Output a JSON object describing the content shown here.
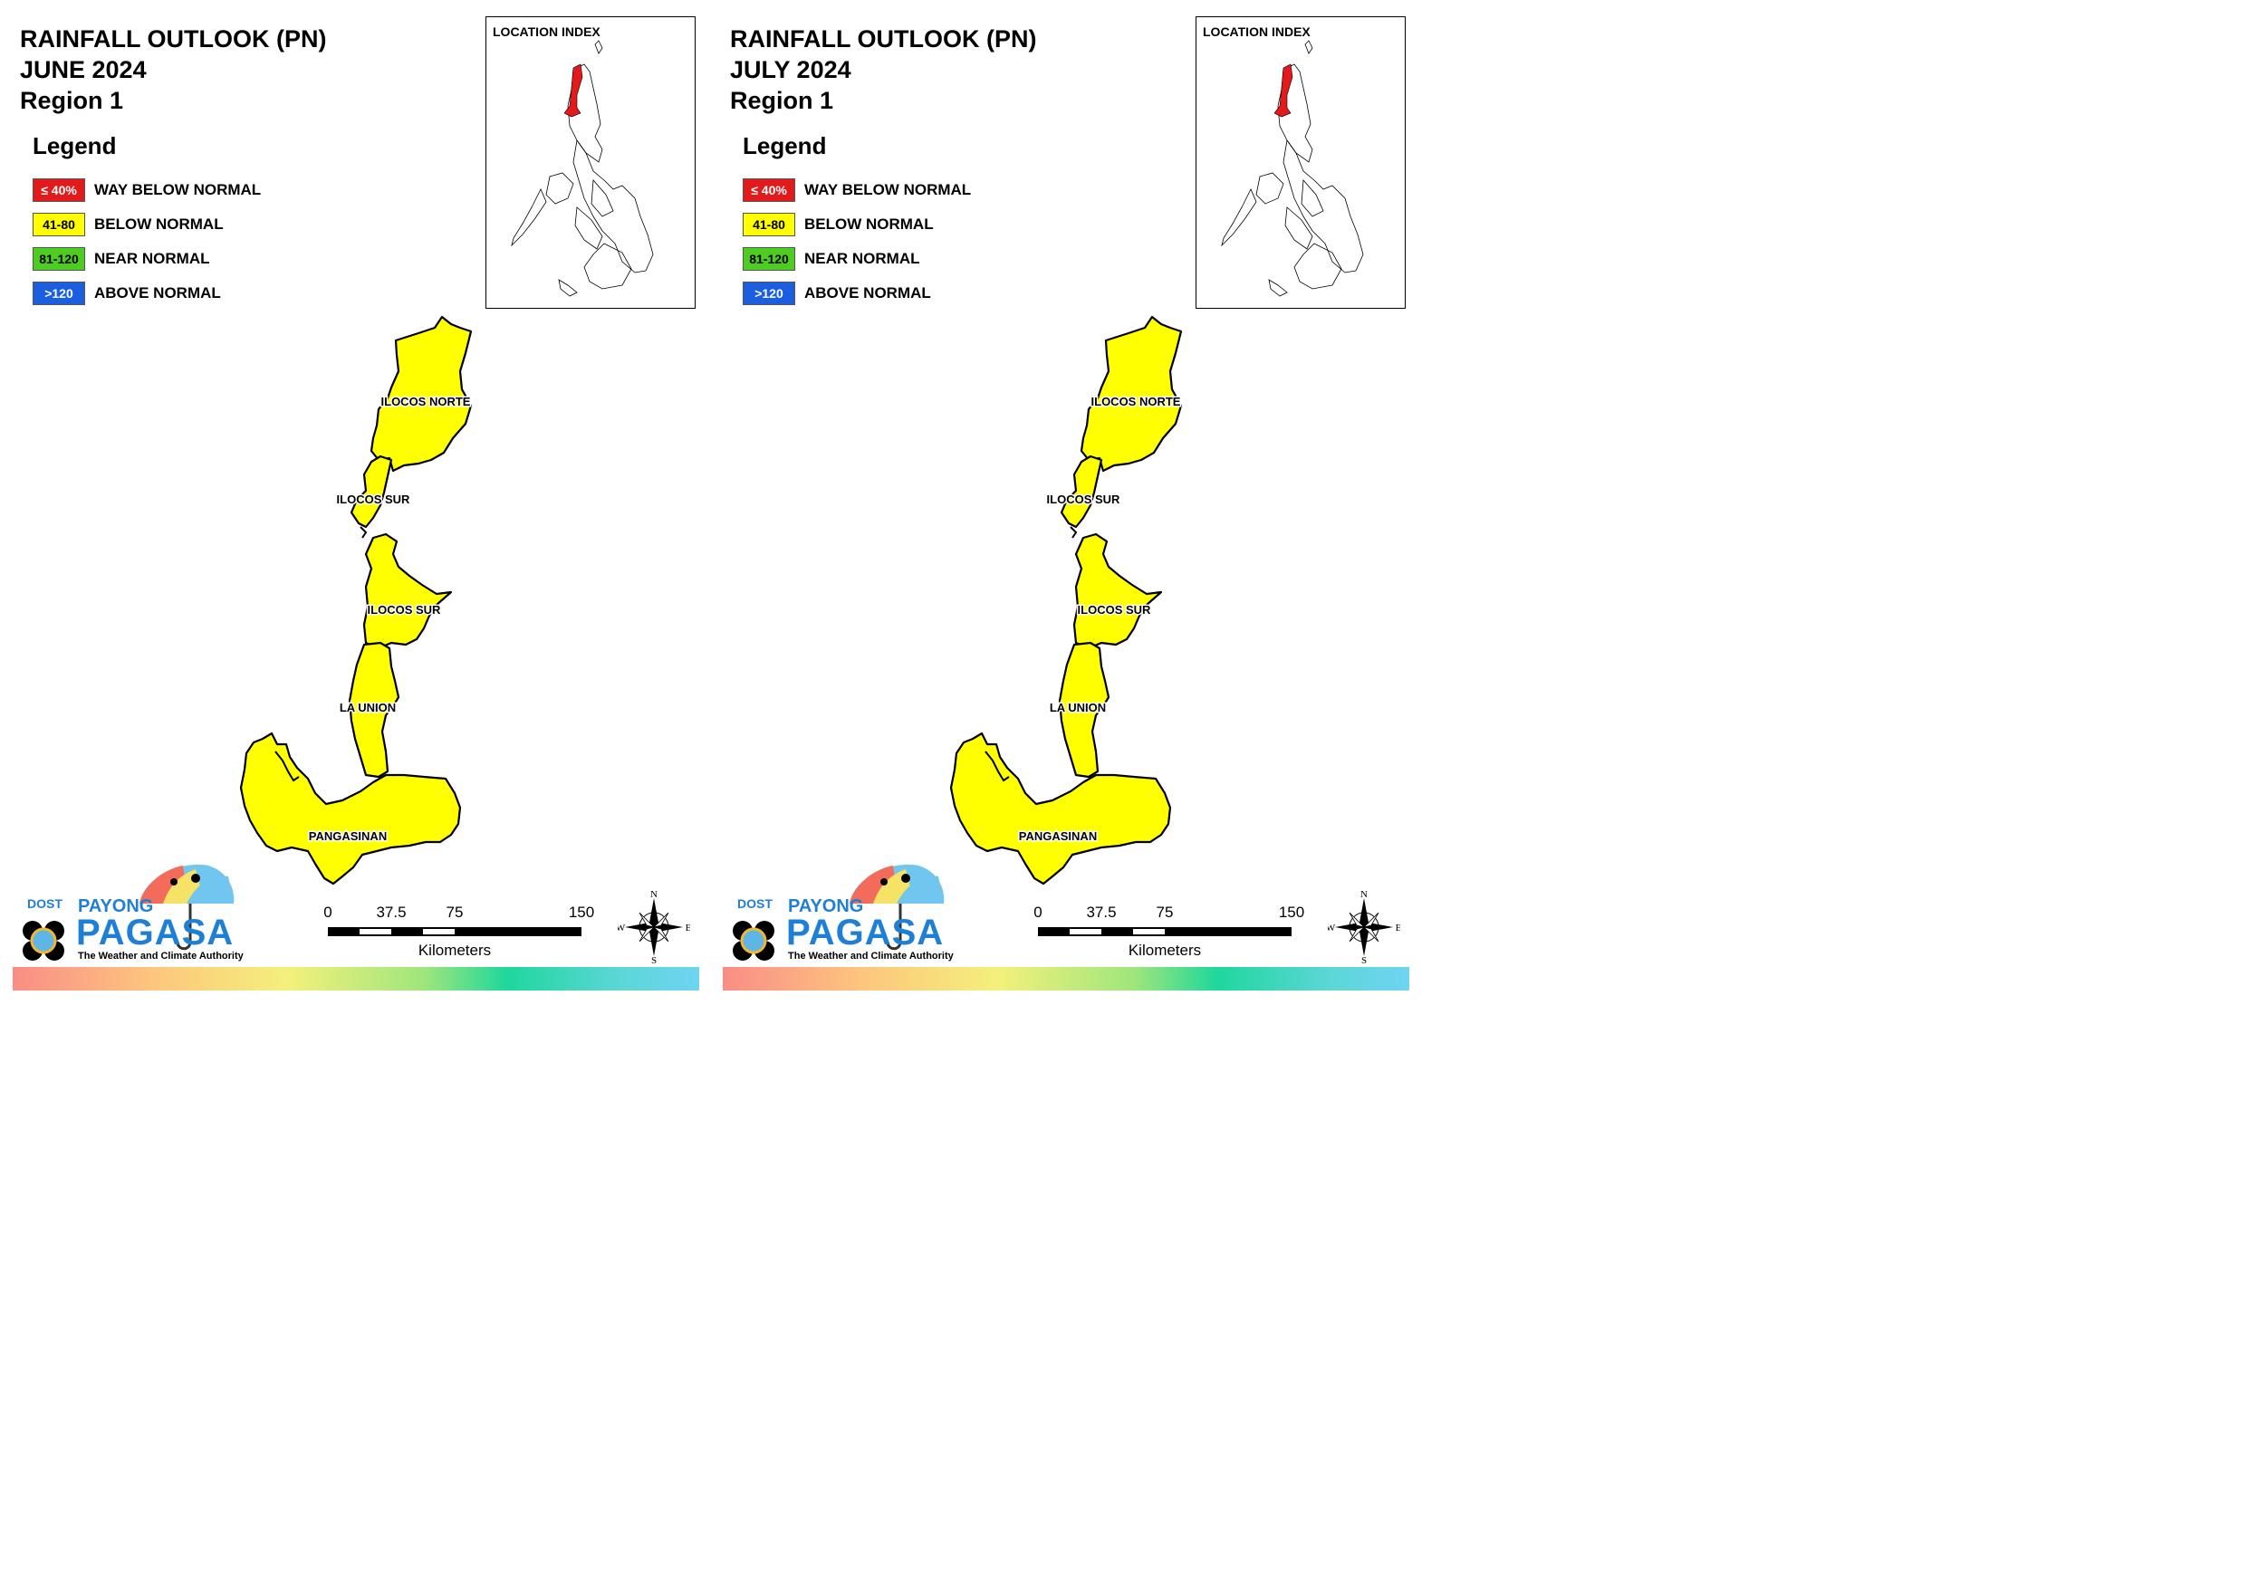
{
  "panels": [
    {
      "title_line1": "RAINFALL OUTLOOK (PN)",
      "title_line2": "JUNE 2024",
      "title_line3": "Region 1"
    },
    {
      "title_line1": "RAINFALL OUTLOOK (PN)",
      "title_line2": "JULY 2024",
      "title_line3": "Region 1"
    }
  ],
  "legend": {
    "title": "Legend",
    "items": [
      {
        "swatch": "≤ 40%",
        "label": "WAY BELOW NORMAL",
        "color": "#e31a1c",
        "text_color": "#ffffff"
      },
      {
        "swatch": "41-80",
        "label": "BELOW NORMAL",
        "color": "#ffff00",
        "text_color": "#000000"
      },
      {
        "swatch": "81-120",
        "label": "NEAR NORMAL",
        "color": "#4ccd1f",
        "text_color": "#000000"
      },
      {
        "swatch": ">120",
        "label": "ABOVE NORMAL",
        "color": "#1b5fe0",
        "text_color": "#ffffff"
      }
    ]
  },
  "location_index": {
    "title": "LOCATION INDEX",
    "highlight_color": "#e31a1c"
  },
  "map": {
    "fill_color": "#ffff00",
    "provinces": [
      "ILOCOS NORTE",
      "ILOCOS SUR",
      "ILOCOS SUR",
      "LA UNION",
      "PANGASINAN"
    ]
  },
  "scalebar": {
    "ticks": [
      "0",
      "37.5",
      "75",
      "150"
    ],
    "unit": "Kilometers"
  },
  "compass": {
    "n": "N",
    "s": "S",
    "e": "E",
    "w": "W"
  },
  "logo": {
    "dost": "DOST",
    "payong": "PAYONG",
    "pagasa": "PAGASA",
    "tagline": "The Weather and Climate Authority"
  }
}
